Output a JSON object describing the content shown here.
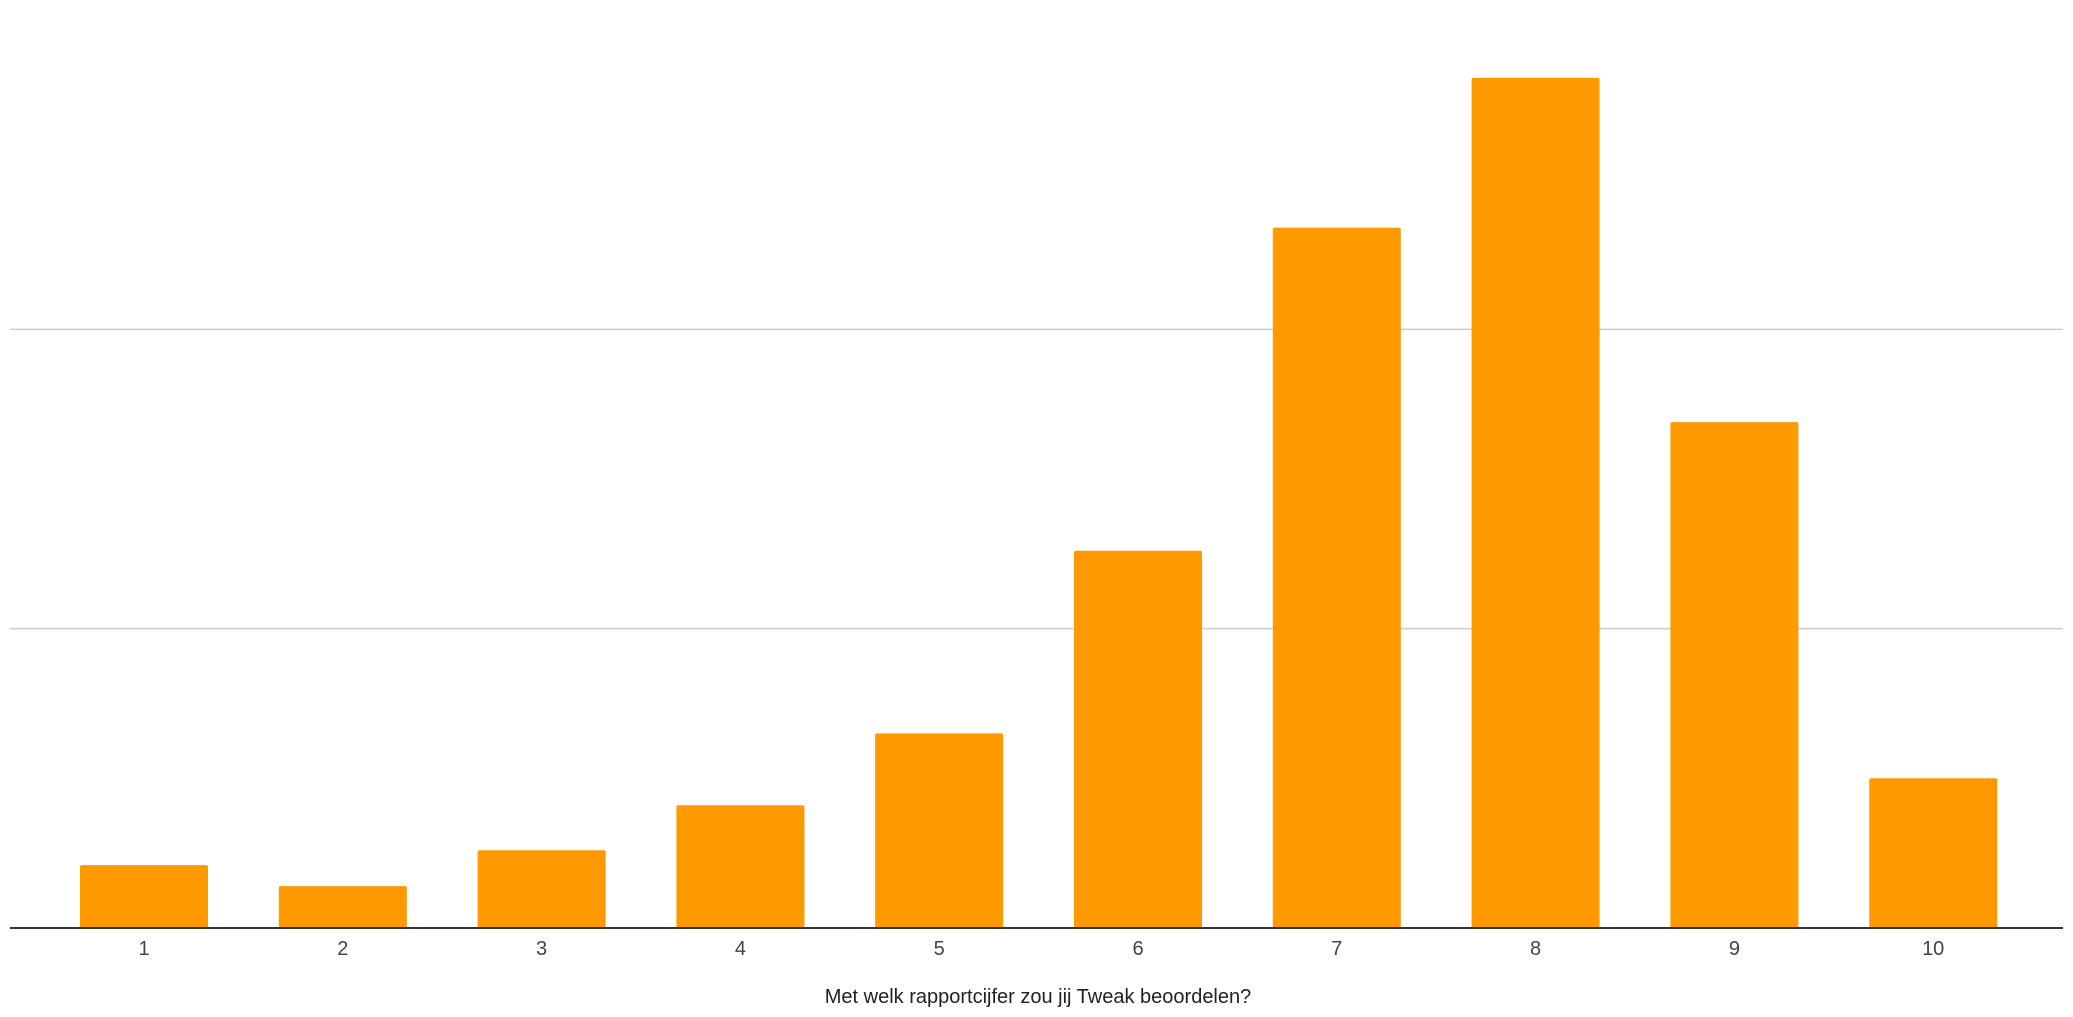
{
  "chart_data": {
    "type": "bar",
    "xlabel": "Met welk rapportcijfer zou jij Tweak beoordelen?",
    "ylabel": "",
    "categories": [
      "1",
      "2",
      "3",
      "4",
      "5",
      "6",
      "7",
      "8",
      "9",
      "10"
    ],
    "series": [
      {
        "values": [
          0.105,
          0.07,
          0.13,
          0.205,
          0.325,
          0.63,
          1.17,
          1.42,
          0.845,
          0.25
        ],
        "color": "#ff9900"
      }
    ],
    "ylim": [
      0,
      1.5
    ],
    "gridlines": [
      0,
      0.5,
      1.0
    ],
    "grid": true,
    "y_tick_labels_visible": false,
    "legend": "none",
    "colors": {
      "bar": "#ff9900",
      "grid": "#cccccc",
      "baseline": "#333333",
      "tick_text": "#444444",
      "title_text": "#222222"
    }
  }
}
